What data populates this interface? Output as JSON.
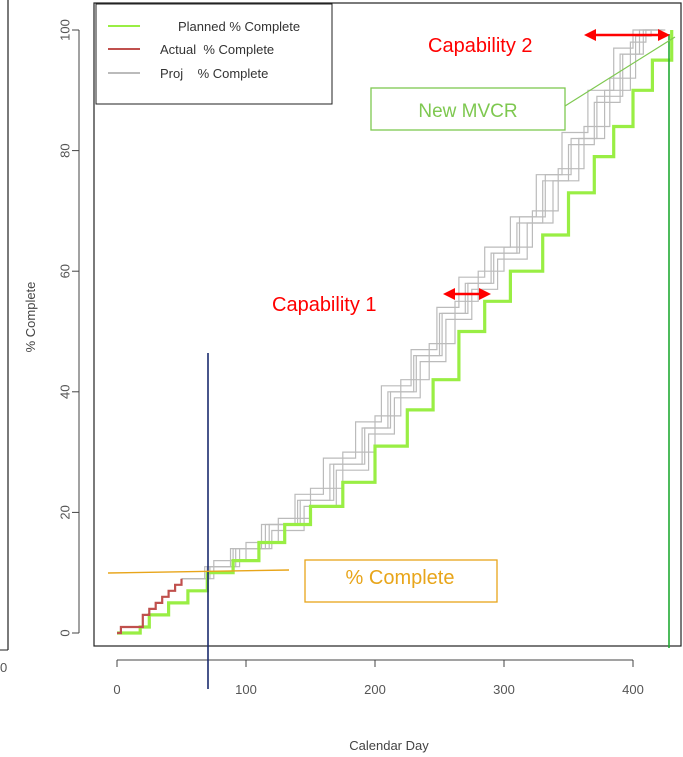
{
  "chart_data": {
    "type": "line",
    "xlabel": "Calendar Day",
    "ylabel": "% Complete",
    "xlim": [
      -10,
      435
    ],
    "ylim": [
      -4,
      102
    ],
    "x_ticks": [
      0,
      100,
      200,
      300,
      400
    ],
    "y_ticks": [
      0,
      20,
      40,
      60,
      80,
      100
    ],
    "legend_position": "top-left",
    "legend": [
      {
        "name": "Planned % Complete",
        "color": "#99ee44"
      },
      {
        "name": "Actual  % Complete",
        "color": "#c0504d"
      },
      {
        "name": "Proj    % Complete",
        "color": "#bbbbbb"
      }
    ],
    "series": [
      {
        "name": "Planned % Complete",
        "color": "#99ee44",
        "points": [
          [
            0,
            0
          ],
          [
            18,
            1
          ],
          [
            25,
            3
          ],
          [
            40,
            5
          ],
          [
            55,
            7
          ],
          [
            70,
            10
          ],
          [
            90,
            12
          ],
          [
            110,
            15
          ],
          [
            130,
            18
          ],
          [
            150,
            21
          ],
          [
            175,
            25
          ],
          [
            200,
            31
          ],
          [
            225,
            37
          ],
          [
            245,
            42
          ],
          [
            265,
            50
          ],
          [
            285,
            55
          ],
          [
            305,
            60
          ],
          [
            330,
            66
          ],
          [
            350,
            73
          ],
          [
            370,
            79
          ],
          [
            385,
            84
          ],
          [
            400,
            90
          ],
          [
            415,
            95
          ],
          [
            430,
            100
          ]
        ]
      },
      {
        "name": "Actual  % Complete",
        "color": "#c0504d",
        "points": [
          [
            0,
            0
          ],
          [
            3,
            1
          ],
          [
            10,
            1
          ],
          [
            17,
            1
          ],
          [
            20,
            3
          ],
          [
            25,
            4
          ],
          [
            30,
            5
          ],
          [
            35,
            6
          ],
          [
            40,
            7
          ],
          [
            45,
            8
          ],
          [
            50,
            9
          ]
        ]
      },
      {
        "name": "Proj    % Complete",
        "color": "#bbbbbb",
        "runs": [
          [
            [
              50,
              9
            ],
            [
              70,
              11
            ],
            [
              90,
              14
            ],
            [
              115,
              18
            ],
            [
              140,
              22
            ],
            [
              165,
              28
            ],
            [
              190,
              34
            ],
            [
              210,
              40
            ],
            [
              230,
              46
            ],
            [
              250,
              53
            ],
            [
              270,
              58
            ],
            [
              290,
              63
            ],
            [
              310,
              68
            ],
            [
              330,
              75
            ],
            [
              350,
              81
            ],
            [
              370,
              88
            ],
            [
              390,
              96
            ],
            [
              405,
              100
            ],
            [
              420,
              100
            ]
          ],
          [
            [
              50,
              9
            ],
            [
              72,
              11
            ],
            [
              95,
              14
            ],
            [
              120,
              17
            ],
            [
              145,
              21
            ],
            [
              170,
              27
            ],
            [
              195,
              33
            ],
            [
              215,
              39
            ],
            [
              235,
              45
            ],
            [
              255,
              52
            ],
            [
              275,
              57
            ],
            [
              295,
              62
            ],
            [
              318,
              68
            ],
            [
              338,
              75
            ],
            [
              358,
              82
            ],
            [
              378,
              90
            ],
            [
              398,
              98
            ],
            [
              410,
              100
            ],
            [
              425,
              100
            ]
          ],
          [
            [
              50,
              9
            ],
            [
              68,
              11
            ],
            [
              88,
              14
            ],
            [
              112,
              18
            ],
            [
              138,
              23
            ],
            [
              160,
              29
            ],
            [
              185,
              35
            ],
            [
              205,
              41
            ],
            [
              228,
              47
            ],
            [
              248,
              54
            ],
            [
              265,
              59
            ],
            [
              285,
              64
            ],
            [
              305,
              69
            ],
            [
              325,
              76
            ],
            [
              345,
              83
            ],
            [
              365,
              90
            ],
            [
              385,
              97
            ],
            [
              400,
              100
            ],
            [
              415,
              100
            ]
          ],
          [
            [
              50,
              9
            ],
            [
              75,
              12
            ],
            [
              100,
              15
            ],
            [
              125,
              19
            ],
            [
              150,
              24
            ],
            [
              175,
              30
            ],
            [
              200,
              36
            ],
            [
              220,
              42
            ],
            [
              242,
              48
            ],
            [
              262,
              55
            ],
            [
              280,
              60
            ],
            [
              300,
              64
            ],
            [
              322,
              70
            ],
            [
              342,
              77
            ],
            [
              362,
              84
            ],
            [
              382,
              92
            ],
            [
              402,
              99
            ],
            [
              414,
              100
            ]
          ],
          [
            [
              50,
              9
            ],
            [
              70,
              11
            ],
            [
              92,
              14
            ],
            [
              118,
              18
            ],
            [
              142,
              22
            ],
            [
              168,
              28
            ],
            [
              192,
              34
            ],
            [
              212,
              40
            ],
            [
              232,
              46
            ],
            [
              252,
              53
            ],
            [
              272,
              58
            ],
            [
              292,
              63
            ],
            [
              312,
              69
            ],
            [
              332,
              76
            ],
            [
              352,
              82
            ],
            [
              372,
              89
            ],
            [
              392,
              96
            ],
            [
              408,
              100
            ],
            [
              423,
              100
            ]
          ]
        ]
      }
    ],
    "annotations": {
      "capability_1": "Capability 1",
      "capability_2": "Capability 2",
      "new_mvcr": "New MVCR",
      "pct_complete": "% Complete",
      "left_edge_label": "0"
    }
  }
}
